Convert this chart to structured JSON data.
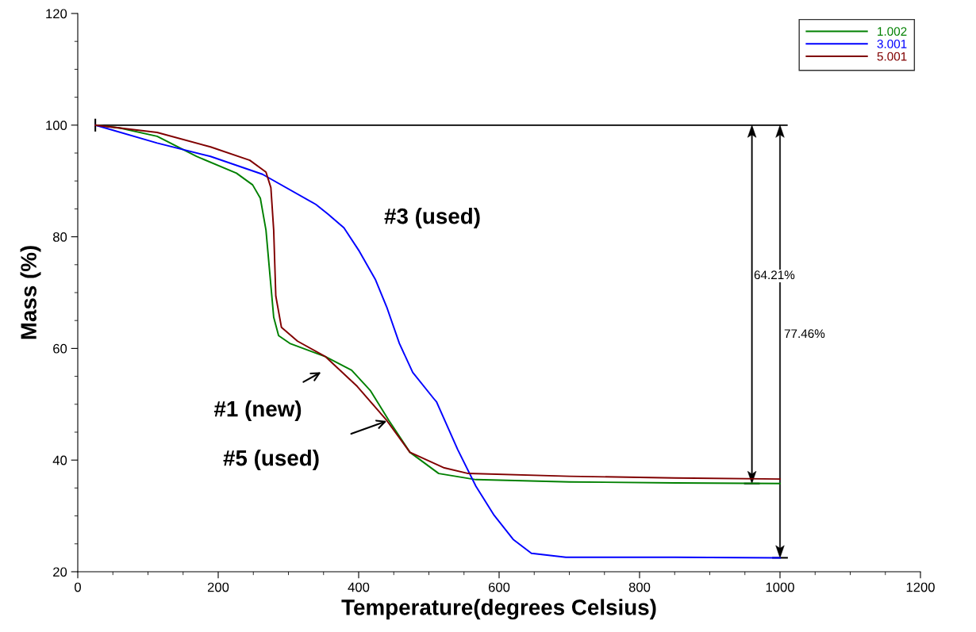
{
  "chart_data": {
    "type": "line",
    "xlabel": "Temperature(degrees Celsius)",
    "ylabel": "Mass (%)",
    "xlim": [
      0,
      1200
    ],
    "ylim": [
      20,
      120
    ],
    "xticks": [
      0,
      {
        "value": 50,
        "label": null
      },
      {
        "value": 100,
        "label": null
      },
      {
        "value": 150,
        "label": null
      },
      200,
      {
        "value": 250,
        "label": null
      },
      {
        "value": 300,
        "label": null
      },
      {
        "value": 350,
        "label": null
      },
      400,
      {
        "value": 450,
        "label": null
      },
      {
        "value": 500,
        "label": null
      },
      {
        "value": 550,
        "label": null
      },
      600,
      {
        "value": 650,
        "label": null
      },
      {
        "value": 700,
        "label": null
      },
      {
        "value": 750,
        "label": null
      },
      800,
      {
        "value": 850,
        "label": null
      },
      {
        "value": 900,
        "label": null
      },
      {
        "value": 950,
        "label": null
      },
      1000,
      {
        "value": 1050,
        "label": null
      },
      {
        "value": 1100,
        "label": null
      },
      {
        "value": 1150,
        "label": null
      },
      1200
    ],
    "yticks": [
      20,
      {
        "value": 25,
        "label": null
      },
      {
        "value": 30,
        "label": null
      },
      {
        "value": 35,
        "label": null
      },
      40,
      {
        "value": 45,
        "label": null
      },
      {
        "value": 50,
        "label": null
      },
      {
        "value": 55,
        "label": null
      },
      60,
      {
        "value": 65,
        "label": null
      },
      {
        "value": 70,
        "label": null
      },
      {
        "value": 75,
        "label": null
      },
      80,
      {
        "value": 85,
        "label": null
      },
      {
        "value": 90,
        "label": null
      },
      {
        "value": 95,
        "label": null
      },
      100,
      {
        "value": 105,
        "label": null
      },
      {
        "value": 110,
        "label": null
      },
      {
        "value": 115,
        "label": null
      },
      120
    ],
    "grid": false,
    "legend": "top right",
    "marker": "none",
    "line_style": "solid",
    "series": [
      {
        "name": "1.002",
        "color": "#008000",
        "x": [
          25,
          59,
          113,
          169,
          226,
          249,
          260,
          268,
          273,
          279,
          286,
          302,
          353,
          390,
          417,
          443,
          473,
          514,
          567,
          700,
          850,
          1000
        ],
        "values": [
          100,
          99.5,
          98.0,
          94.4,
          91.4,
          89.3,
          86.9,
          81.2,
          74.1,
          65.6,
          62.3,
          60.9,
          58.5,
          56.1,
          52.4,
          47.1,
          41.4,
          37.6,
          36.5,
          36.1,
          35.9,
          35.8
        ]
      },
      {
        "name": "3.001",
        "color": "#0000ff",
        "x": [
          25,
          113,
          189,
          263,
          339,
          356,
          379,
          401,
          424,
          440,
          458,
          477,
          507,
          511,
          541,
          567,
          593,
          620,
          646,
          695,
          850,
          1000
        ],
        "values": [
          100,
          96.8,
          94.4,
          91.2,
          85.8,
          84.1,
          81.6,
          77.4,
          72.3,
          67.4,
          60.9,
          55.7,
          51.0,
          50.4,
          41.9,
          35.3,
          30.1,
          25.8,
          23.3,
          22.6,
          22.6,
          22.5
        ]
      },
      {
        "name": "5.001",
        "color": "#800000",
        "x": [
          25,
          113,
          189,
          245,
          268,
          275,
          279,
          282,
          290,
          313,
          353,
          398,
          440,
          473,
          522,
          556,
          700,
          850,
          1000
        ],
        "values": [
          100,
          98.7,
          96.1,
          93.7,
          91.6,
          88.8,
          81.2,
          69.4,
          63.8,
          61.3,
          58.5,
          53.2,
          47.1,
          41.4,
          38.6,
          37.6,
          37.1,
          36.8,
          36.6
        ]
      }
    ],
    "ref_lines": [
      {
        "axis": "y",
        "value": 100,
        "color": "#000000"
      }
    ],
    "annotations": [
      "#3 (used)",
      "#1 (new)",
      "#5 (used)",
      "64.21%",
      "77.46%"
    ]
  }
}
